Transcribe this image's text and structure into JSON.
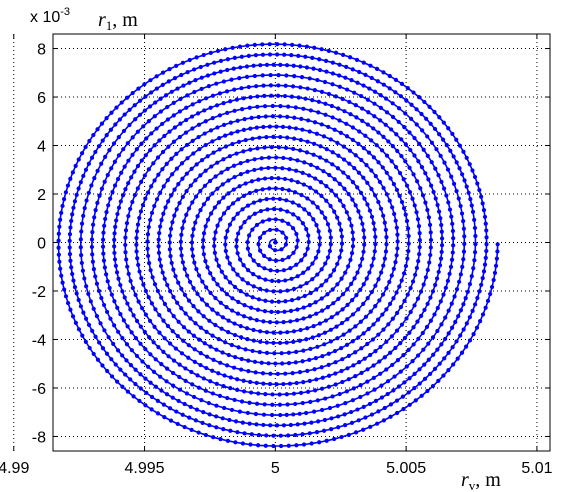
{
  "chart_data": {
    "type": "scatter",
    "title": "",
    "xlabel": {
      "symbol": "r",
      "sub": "v",
      "unit": ", m"
    },
    "ylabel": {
      "symbol": "r",
      "sub": "1",
      "unit": ", m"
    },
    "y_exponent": {
      "base": "x 10",
      "power": "-3"
    },
    "xlim": [
      4.9915,
      5.0105
    ],
    "ylim": [
      -8.6,
      8.6
    ],
    "x_ticks": [
      4.99,
      4.995,
      5,
      5.005,
      5.01
    ],
    "x_tick_labels": [
      "4.99",
      "4.995",
      "5",
      "5.005",
      "5.01"
    ],
    "y_ticks": [
      -8,
      -6,
      -4,
      -2,
      0,
      2,
      4,
      6,
      8
    ],
    "y_tick_labels": [
      "-8",
      "-6",
      "-4",
      "-2",
      "0",
      "2",
      "4",
      "6",
      "8"
    ],
    "grid": true,
    "grid_style": "dotted",
    "series": [
      {
        "kind": "archimedean-spiral",
        "color": "#0000ff",
        "marker": "dot",
        "center_x": 5.0,
        "center_y_e3": 0,
        "turns": 20,
        "max_radius_x": 0.0085,
        "max_radius_y_e3": 8.5
      }
    ]
  }
}
